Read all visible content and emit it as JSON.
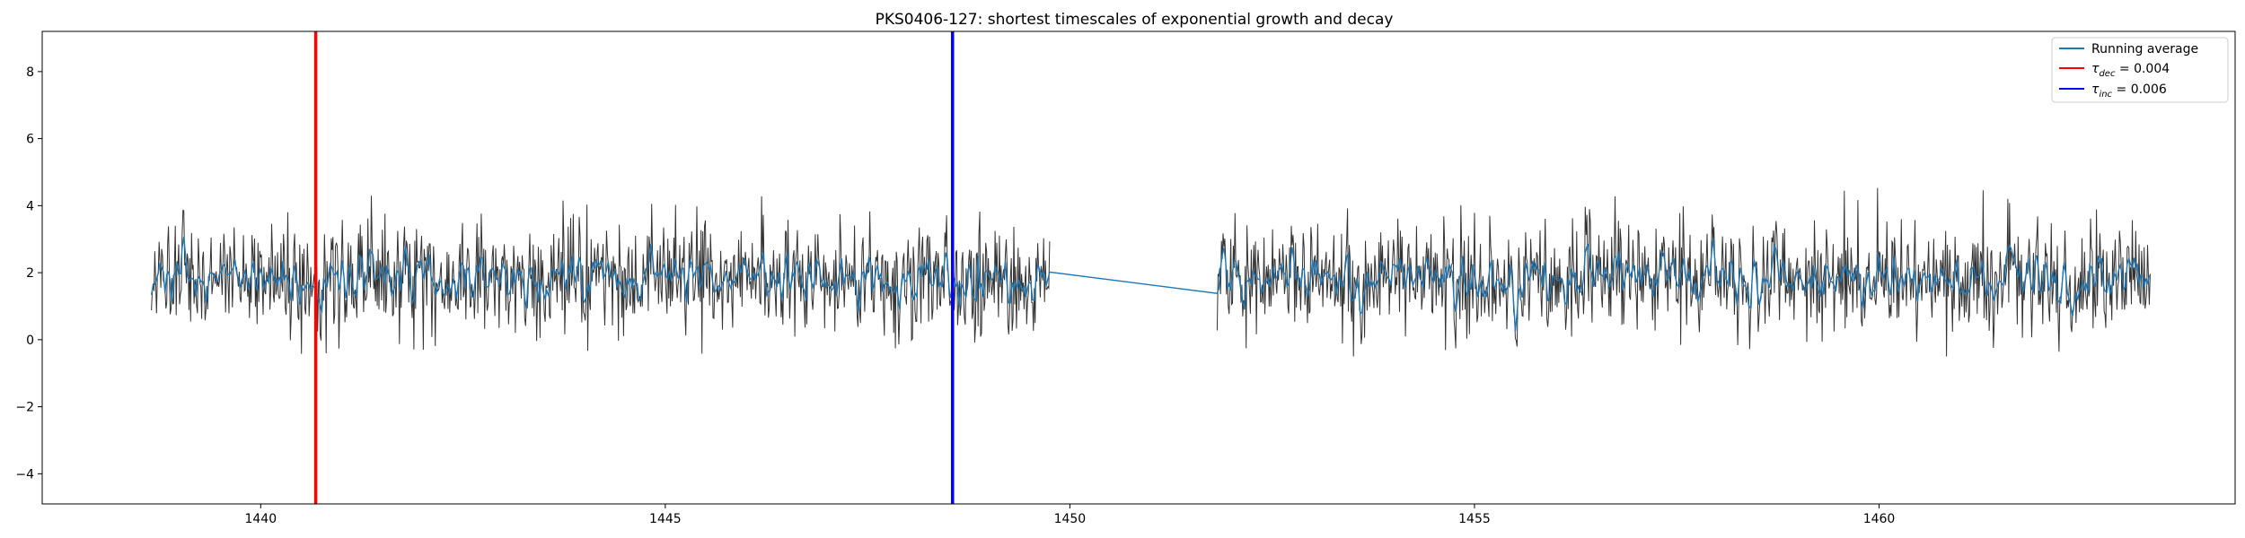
{
  "chart_data": {
    "type": "line",
    "title": "PKS0406-127: shortest timescales of exponential growth and decay",
    "xlabel": "",
    "ylabel": "",
    "xlim": [
      1437.3,
      1464.4
    ],
    "ylim": [
      -4.9,
      9.2
    ],
    "xticks": [
      1440,
      1445,
      1450,
      1455,
      1460
    ],
    "yticks": [
      -4,
      -2,
      0,
      2,
      4,
      6,
      8
    ],
    "grid": false,
    "legend_position": "top-right",
    "segments": [
      {
        "x_start": 1438.65,
        "x_end": 1449.75
      },
      {
        "x_start": 1451.82,
        "x_end": 1463.35
      }
    ],
    "signal_level": 1.8,
    "signal_band": [
      -0.5,
      4.9
    ],
    "series": [
      {
        "name": "Running average",
        "color": "#1f77b4",
        "role": "running-average"
      },
      {
        "name": "τ_dec = 0.004",
        "color": "#ff0000",
        "x": 1440.68,
        "role": "vline"
      },
      {
        "name": "τ_inc = 0.006",
        "color": "#0000ff",
        "x": 1448.55,
        "role": "vline"
      }
    ],
    "raw_series_color": "#333333"
  },
  "legend": {
    "items": [
      {
        "label": "Running average",
        "color": "#1f77b4"
      },
      {
        "tau_sub": "dec",
        "label_suffix": " = 0.004",
        "color": "#ff0000"
      },
      {
        "tau_sub": "inc",
        "label_suffix": " = 0.006",
        "color": "#0000ff"
      }
    ]
  }
}
